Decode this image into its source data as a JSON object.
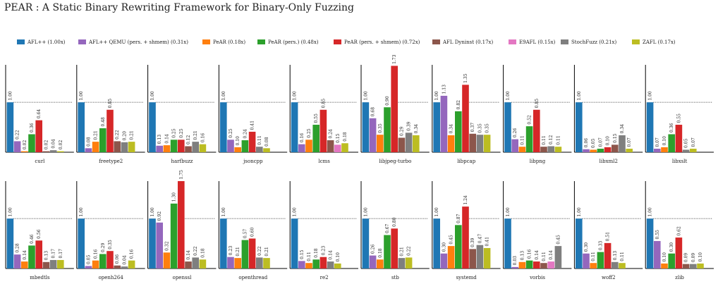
{
  "page": {
    "title": "PEAR : A Static Binary Rewriting Framework for Binary-Only Fuzzing"
  },
  "chart_data": {
    "type": "bar",
    "grid": false,
    "legend_position": "top",
    "series": [
      {
        "name": "AFL++ (1.00x)",
        "color": "#1f77b4"
      },
      {
        "name": "AFL++ QEMU (pers. + shmem) (0.31x)",
        "color": "#9467bd"
      },
      {
        "name": "PeAR (0.18x)",
        "color": "#ff7f0e"
      },
      {
        "name": "PeAR (pers.) (0.48x)",
        "color": "#2ca02c"
      },
      {
        "name": "PeAR (pers. + shmem) (0.72x)",
        "color": "#d62728"
      },
      {
        "name": "AFL Dyninst (0.17x)",
        "color": "#8c564b"
      },
      {
        "name": "E9AFL (0.15x)",
        "color": "#e377c2"
      },
      {
        "name": "StochFuzz (0.21x)",
        "color": "#7f7f7f"
      },
      {
        "name": "ZAFL (0.17x)",
        "color": "#bcbd22"
      }
    ],
    "panels": [
      {
        "name": "curl",
        "values": [
          1.0,
          0.22,
          0.02,
          0.36,
          0.64,
          0.02,
          null,
          0.04,
          0.02
        ]
      },
      {
        "name": "freetype2",
        "values": [
          1.0,
          0.08,
          0.21,
          0.48,
          0.85,
          0.22,
          null,
          0.2,
          0.21
        ]
      },
      {
        "name": "harfbuzz",
        "values": [
          1.0,
          0.13,
          0.14,
          0.25,
          0.25,
          0.12,
          null,
          0.21,
          0.16
        ]
      },
      {
        "name": "jsoncpp",
        "values": [
          1.0,
          0.25,
          0.1,
          0.24,
          0.41,
          null,
          null,
          0.11,
          0.08
        ]
      },
      {
        "name": "lcms",
        "values": [
          1.0,
          0.16,
          0.25,
          0.55,
          0.85,
          0.24,
          0.15,
          null,
          0.18
        ]
      },
      {
        "name": "libjpeg-turbo",
        "values": [
          1.0,
          0.68,
          0.35,
          0.9,
          1.73,
          0.29,
          null,
          0.39,
          0.34
        ]
      },
      {
        "name": "libpcap",
        "values": [
          1.0,
          1.13,
          0.34,
          0.82,
          1.35,
          0.37,
          null,
          0.35,
          0.35
        ]
      },
      {
        "name": "libpng",
        "values": [
          1.0,
          0.26,
          0.11,
          0.52,
          0.85,
          0.11,
          null,
          0.12,
          0.11
        ]
      },
      {
        "name": "libxml2",
        "values": [
          1.0,
          0.06,
          0.05,
          0.07,
          0.1,
          0.15,
          null,
          0.34,
          0.07
        ]
      },
      {
        "name": "libxslt",
        "values": [
          1.0,
          0.07,
          0.1,
          0.36,
          0.55,
          null,
          null,
          0.05,
          0.07
        ]
      },
      {
        "name": "mbedtls",
        "values": [
          1.0,
          0.28,
          0.14,
          0.46,
          0.56,
          0.13,
          null,
          0.17,
          0.17
        ]
      },
      {
        "name": "openh264",
        "values": [
          1.0,
          0.05,
          0.16,
          0.29,
          0.35,
          0.06,
          null,
          0.04,
          0.16
        ]
      },
      {
        "name": "openssl",
        "values": [
          1.0,
          0.92,
          0.32,
          1.3,
          1.75,
          0.14,
          null,
          0.22,
          0.18
        ]
      },
      {
        "name": "openthread",
        "values": [
          1.0,
          0.23,
          0.21,
          0.57,
          0.6,
          null,
          null,
          0.22,
          0.21
        ]
      },
      {
        "name": "re2",
        "values": [
          1.0,
          0.15,
          0.11,
          0.18,
          0.23,
          null,
          null,
          0.14,
          0.1
        ]
      },
      {
        "name": "stb",
        "values": [
          1.0,
          0.26,
          0.18,
          0.67,
          0.8,
          null,
          null,
          0.21,
          0.22
        ]
      },
      {
        "name": "systemd",
        "values": [
          1.0,
          0.3,
          0.45,
          0.87,
          1.24,
          0.39,
          null,
          0.47,
          0.41
        ]
      },
      {
        "name": "vorbis",
        "values": [
          1.0,
          0.03,
          0.13,
          0.16,
          0.14,
          0.11,
          0.14,
          0.45,
          null
        ]
      },
      {
        "name": "woff2",
        "values": [
          1.0,
          0.3,
          0.11,
          0.33,
          0.51,
          null,
          null,
          0.13,
          0.11
        ]
      },
      {
        "name": "zlib",
        "values": [
          1.0,
          0.55,
          0.1,
          0.3,
          0.62,
          0.09,
          null,
          0.09,
          0.1
        ]
      }
    ]
  }
}
